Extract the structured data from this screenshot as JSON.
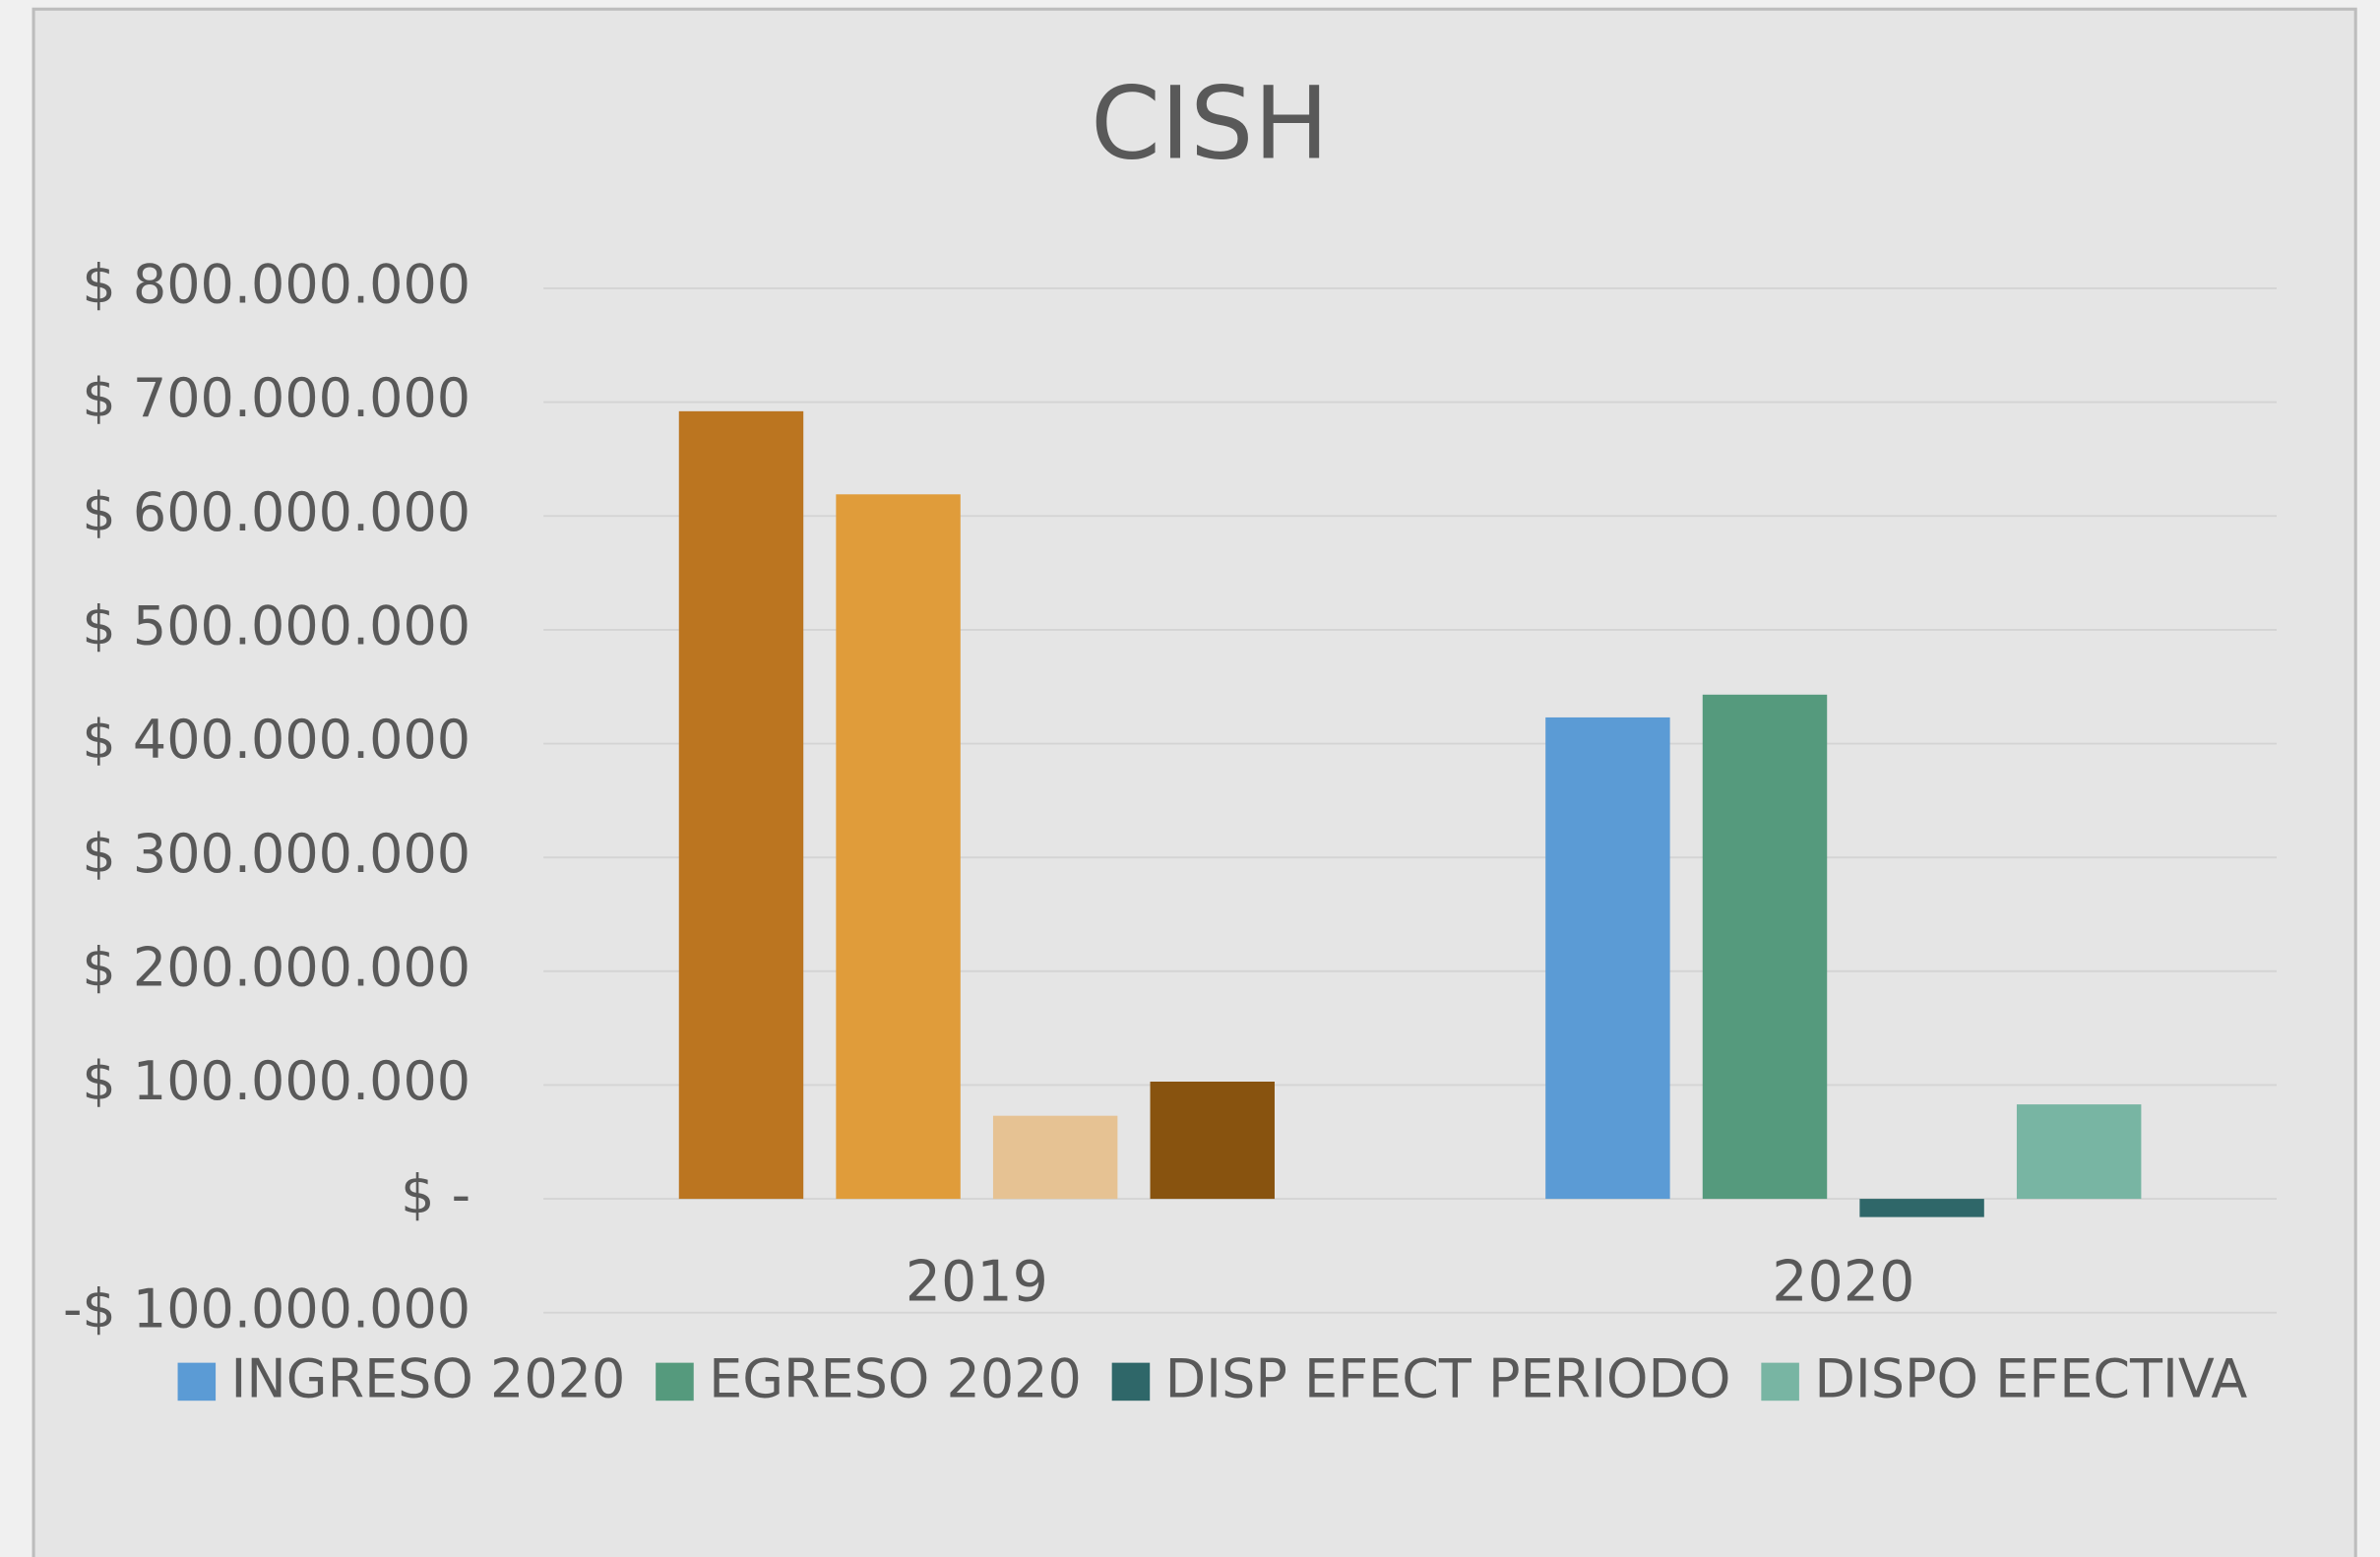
{
  "chart_data": {
    "type": "bar",
    "title": "CISH",
    "categories": [
      "2019",
      "2020"
    ],
    "series": [
      {
        "name": "INGRESO 2020",
        "color": "#5b9bd5",
        "point_colors": [
          "#bb7520",
          "#5b9bd5"
        ],
        "values": [
          692000000,
          423000000
        ]
      },
      {
        "name": "EGRESO 2020",
        "color": "#559a7d",
        "point_colors": [
          "#e09c3a",
          "#559a7d"
        ],
        "values": [
          619000000,
          443000000
        ]
      },
      {
        "name": "DISP EFECT PERIODO",
        "color": "#2f6769",
        "point_colors": [
          "#e6c293",
          "#2f6769"
        ],
        "values": [
          73000000,
          -16000000
        ]
      },
      {
        "name": "DISPO EFECTIVA",
        "color": "#78b5a3",
        "point_colors": [
          "#88530f",
          "#78b5a3"
        ],
        "values": [
          103000000,
          83000000
        ]
      }
    ],
    "ylim": [
      -100000000,
      800000000
    ],
    "yticks": [
      {
        "value": -100000000,
        "label": "-$ 100.000.000"
      },
      {
        "value": 0,
        "label": "$ -"
      },
      {
        "value": 100000000,
        "label": "$ 100.000.000"
      },
      {
        "value": 200000000,
        "label": "$ 200.000.000"
      },
      {
        "value": 300000000,
        "label": "$ 300.000.000"
      },
      {
        "value": 400000000,
        "label": "$ 400.000.000"
      },
      {
        "value": 500000000,
        "label": "$ 500.000.000"
      },
      {
        "value": 600000000,
        "label": "$ 600.000.000"
      },
      {
        "value": 700000000,
        "label": "$ 700.000.000"
      },
      {
        "value": 800000000,
        "label": "$ 800.000.000"
      }
    ],
    "grid": true,
    "legend": "bottom"
  }
}
